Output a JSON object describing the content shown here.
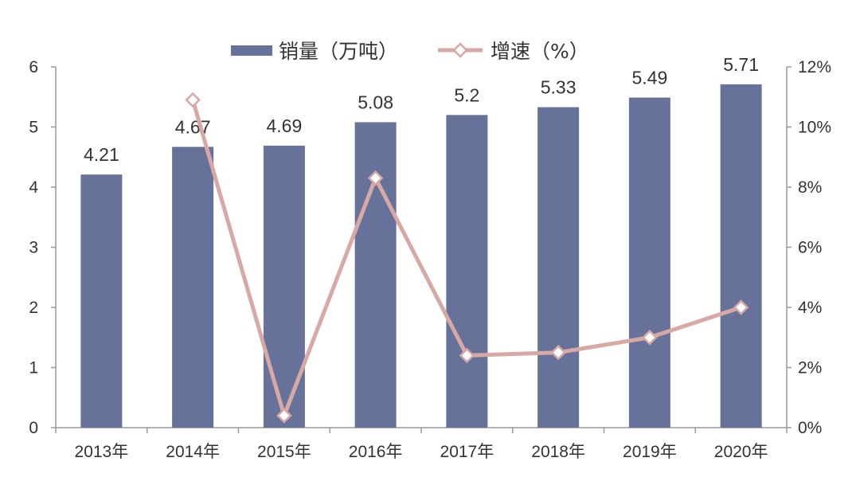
{
  "chart_data": {
    "type": "bar",
    "categories": [
      "2013年",
      "2014年",
      "2015年",
      "2016年",
      "2017年",
      "2018年",
      "2019年",
      "2020年"
    ],
    "series": [
      {
        "name": "销量（万吨）",
        "type": "bar",
        "axis": "left",
        "color": "#67729a",
        "values": [
          4.21,
          4.67,
          4.69,
          5.08,
          5.2,
          5.33,
          5.49,
          5.71
        ],
        "labels": [
          "4.21",
          "4.67",
          "4.69",
          "5.08",
          "5.2",
          "5.33",
          "5.49",
          "5.71"
        ]
      },
      {
        "name": "增速（%）",
        "type": "line",
        "axis": "right",
        "color": "#d8a8a4",
        "marker": "diamond",
        "values": [
          null,
          10.9,
          0.4,
          8.3,
          2.4,
          2.5,
          3.0,
          4.0
        ]
      }
    ],
    "ylim_left": [
      0,
      6
    ],
    "ylim_right": [
      0,
      12
    ],
    "yticks_left": [
      "0",
      "1",
      "2",
      "3",
      "4",
      "5",
      "6"
    ],
    "yticks_right": [
      "0%",
      "2%",
      "4%",
      "6%",
      "8%",
      "10%",
      "12%"
    ],
    "grid": false,
    "legend_position": "top"
  }
}
